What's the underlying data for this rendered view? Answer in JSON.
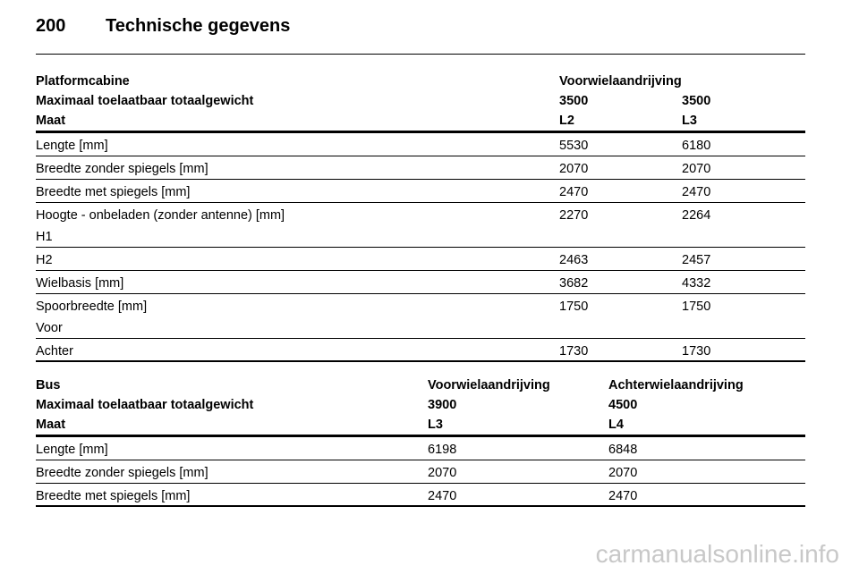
{
  "header": {
    "page_number": "200",
    "title": "Technische gegevens"
  },
  "tables": [
    {
      "head": [
        [
          "Platformcabine",
          "Voorwielaandrijving"
        ],
        [
          "Maximaal toelaatbaar totaalgewicht",
          3500,
          3500
        ],
        [
          "Maat",
          "L2",
          "L3"
        ]
      ],
      "rows": [
        {
          "cells": [
            "Lengte [mm]",
            5530,
            6180
          ]
        },
        {
          "cells": [
            "Breedte zonder spiegels [mm]",
            2070,
            2070
          ]
        },
        {
          "cells": [
            "Breedte met spiegels [mm]",
            2470,
            2470
          ]
        },
        {
          "cells": [
            "Hoogte - onbeladen (zonder antenne) [mm]",
            2270,
            2264
          ],
          "sub": "H1"
        },
        {
          "cells": [
            "H2",
            2463,
            2457
          ]
        },
        {
          "cells": [
            "Wielbasis [mm]",
            3682,
            4332
          ]
        },
        {
          "cells": [
            "Spoorbreedte [mm]",
            1750,
            1750
          ],
          "sub": "Voor"
        },
        {
          "cells": [
            "Achter",
            1730,
            1730
          ]
        }
      ]
    },
    {
      "head": [
        [
          "Bus",
          "Voorwielaandrijving",
          "Achterwielaandrijving"
        ],
        [
          "Maximaal toelaatbaar totaalgewicht",
          3900,
          4500
        ],
        [
          "Maat",
          "L3",
          "L4"
        ]
      ],
      "rows": [
        {
          "cells": [
            "Lengte [mm]",
            6198,
            6848
          ]
        },
        {
          "cells": [
            "Breedte zonder spiegels [mm]",
            2070,
            2070
          ]
        },
        {
          "cells": [
            "Breedte met spiegels [mm]",
            2470,
            2470
          ]
        }
      ]
    }
  ],
  "watermark": "carmanualsonline.info"
}
